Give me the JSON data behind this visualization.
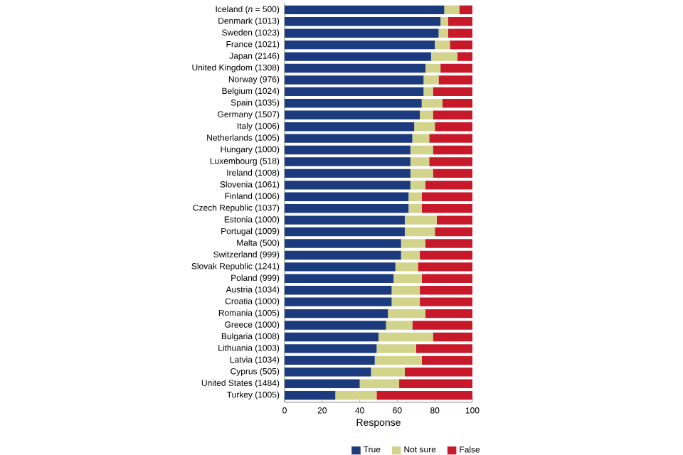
{
  "chart_data": {
    "type": "bar",
    "orientation": "horizontal",
    "stacked": true,
    "xlabel": "Response",
    "legend": "bottom right",
    "categories": [
      "Iceland (*n* = 500)",
      "Denmark (1013)",
      "Sweden (1023)",
      "France (1021)",
      "Japan (2146)",
      "United Kingdom (1308)",
      "Norway (976)",
      "Belgium (1024)",
      "Spain (1035)",
      "Germany (1507)",
      "Italy (1006)",
      "Netherlands (1005)",
      "Hungary (1000)",
      "Luxembourg (518)",
      "Ireland (1008)",
      "Slovenia (1061)",
      "Finland (1006)",
      "Czech Republic (1037)",
      "Estonia (1000)",
      "Portugal (1009)",
      "Malta (500)",
      "Switzerland (999)",
      "Slovak Republic (1241)",
      "Poland (999)",
      "Austria (1034)",
      "Croatia (1000)",
      "Romania (1005)",
      "Greece (1000)",
      "Bulgaria (1008)",
      "Lithuania (1003)",
      "Latvia (1034)",
      "Cyprus (505)",
      "United States (1484)",
      "Turkey (1005)"
    ],
    "series": [
      {
        "name": "True",
        "color": "#1c3a7e",
        "values": [
          85,
          83,
          82,
          80,
          78,
          75,
          74,
          74,
          73,
          72,
          69,
          68,
          67,
          67,
          67,
          67,
          66,
          66,
          64,
          64,
          62,
          62,
          59,
          58,
          57,
          57,
          55,
          54,
          50,
          49,
          48,
          46,
          40,
          27
        ]
      },
      {
        "name": "Not sure",
        "color": "#d3d48c",
        "values": [
          8,
          4,
          5,
          8,
          14,
          8,
          8,
          5,
          11,
          7,
          11,
          9,
          12,
          10,
          12,
          8,
          7,
          7,
          17,
          16,
          13,
          10,
          12,
          15,
          15,
          15,
          20,
          14,
          29,
          21,
          25,
          18,
          21,
          22
        ]
      },
      {
        "name": "False",
        "color": "#c8192b",
        "values": [
          7,
          13,
          13,
          12,
          8,
          17,
          18,
          21,
          16,
          21,
          20,
          23,
          21,
          23,
          21,
          25,
          27,
          27,
          19,
          20,
          25,
          28,
          29,
          27,
          28,
          28,
          25,
          32,
          21,
          30,
          27,
          36,
          39,
          51
        ]
      }
    ],
    "xlim": [
      0,
      100
    ],
    "xticks": [
      0,
      20,
      40,
      60,
      80,
      100
    ]
  }
}
